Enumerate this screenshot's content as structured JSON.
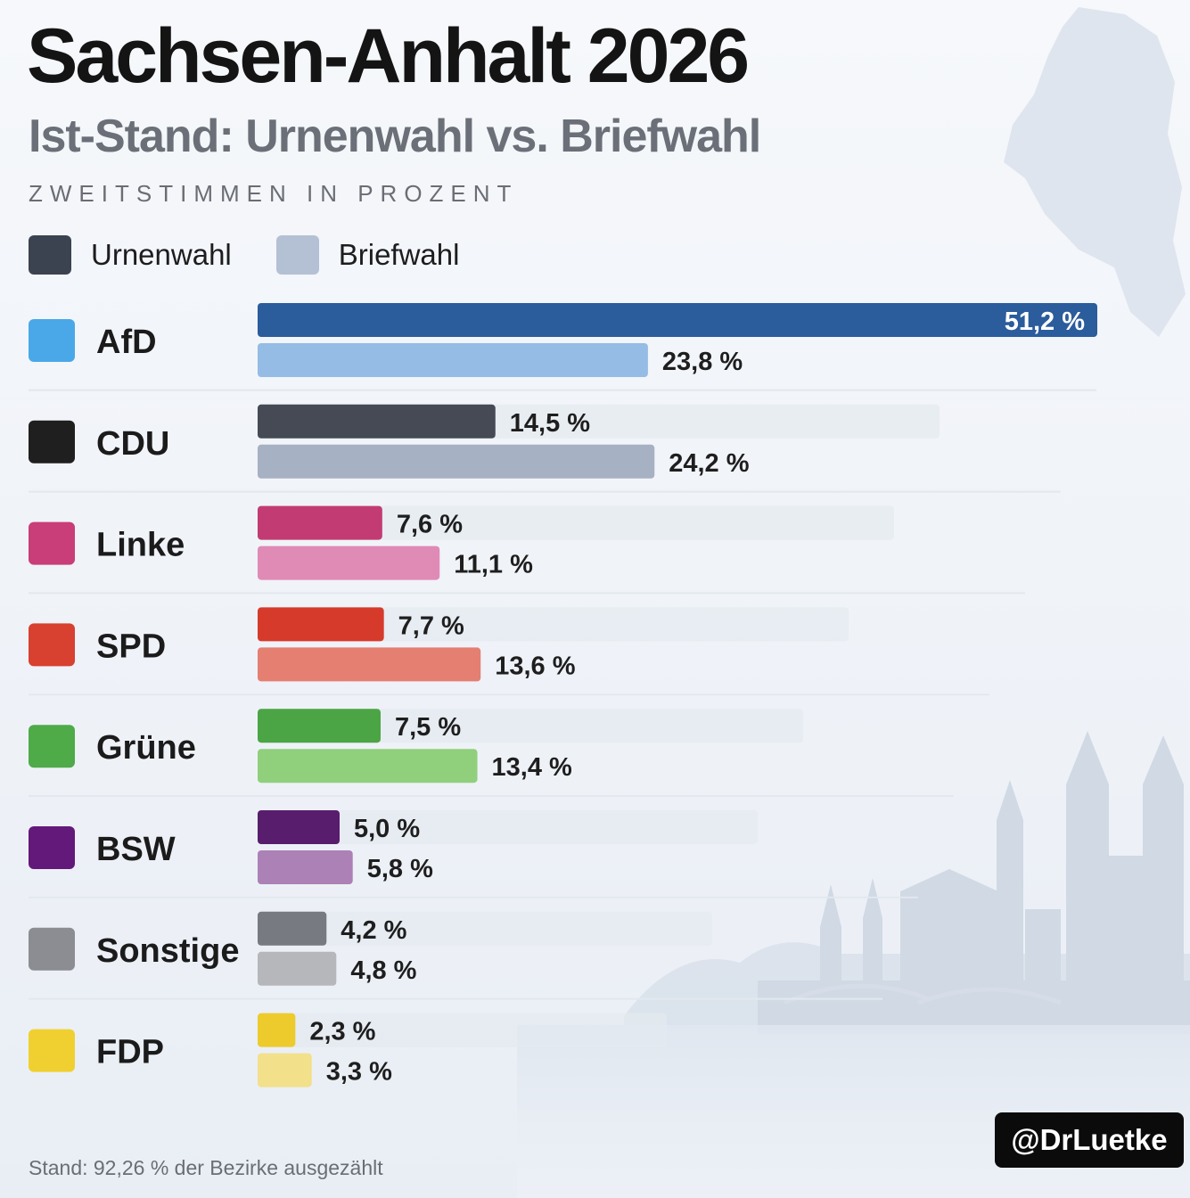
{
  "header": {
    "title": "Sachsen-Anhalt 2026",
    "subtitle": "Ist-Stand: Urnenwahl vs. Briefwahl",
    "unit": "ZWEITSTIMMEN IN PROZENT"
  },
  "footer": {
    "note": "Stand: 92,26 % der Bezirke ausgezählt",
    "handle": "@DrLuetke"
  },
  "chart_data": {
    "type": "bar",
    "orientation": "horizontal",
    "title": "Sachsen-Anhalt 2026",
    "subtitle": "Ist-Stand: Urnenwahl vs. Briefwahl",
    "unit_label": "ZWEITSTIMMEN IN PROZENT",
    "xlim": [
      0,
      51.2
    ],
    "grid": false,
    "legend_position": "top-left",
    "categories": [
      "AfD",
      "CDU",
      "Linke",
      "SPD",
      "Grüne",
      "BSW",
      "Sonstige",
      "FDP"
    ],
    "category_colors": [
      "#4aa8e8",
      "#1f1f1f",
      "#c93d78",
      "#d84030",
      "#4eab48",
      "#63197a",
      "#8b8d92",
      "#f0d030"
    ],
    "series": [
      {
        "name": "Urnenwahl",
        "legend_color": "#3c4350",
        "colors": [
          "#2b5c9c",
          "#454a55",
          "#c23c73",
          "#d63a2b",
          "#4ba544",
          "#581d6d",
          "#777a80",
          "#edcb2c"
        ],
        "values": [
          51.2,
          14.5,
          7.6,
          7.7,
          7.5,
          5.0,
          4.2,
          2.3
        ],
        "labels": [
          "51,2 %",
          "14,5 %",
          "7,6 %",
          "7,7 %",
          "7,5 %",
          "5,0 %",
          "4,2 %",
          "2,3 %"
        ]
      },
      {
        "name": "Briefwahl",
        "legend_color": "#b4c0d4",
        "colors": [
          "#94bce4",
          "#a6b1c3",
          "#e08ab6",
          "#e47f72",
          "#90cf7c",
          "#ac81b6",
          "#b6b7bb",
          "#f2e08a"
        ],
        "values": [
          23.8,
          24.2,
          11.1,
          13.6,
          13.4,
          5.8,
          4.8,
          3.3
        ],
        "labels": [
          "23,8 %",
          "24,2 %",
          "11,1 %",
          "13,6 %",
          "13,4 %",
          "5,8 %",
          "4,8 %",
          "3,3 %"
        ]
      }
    ]
  }
}
